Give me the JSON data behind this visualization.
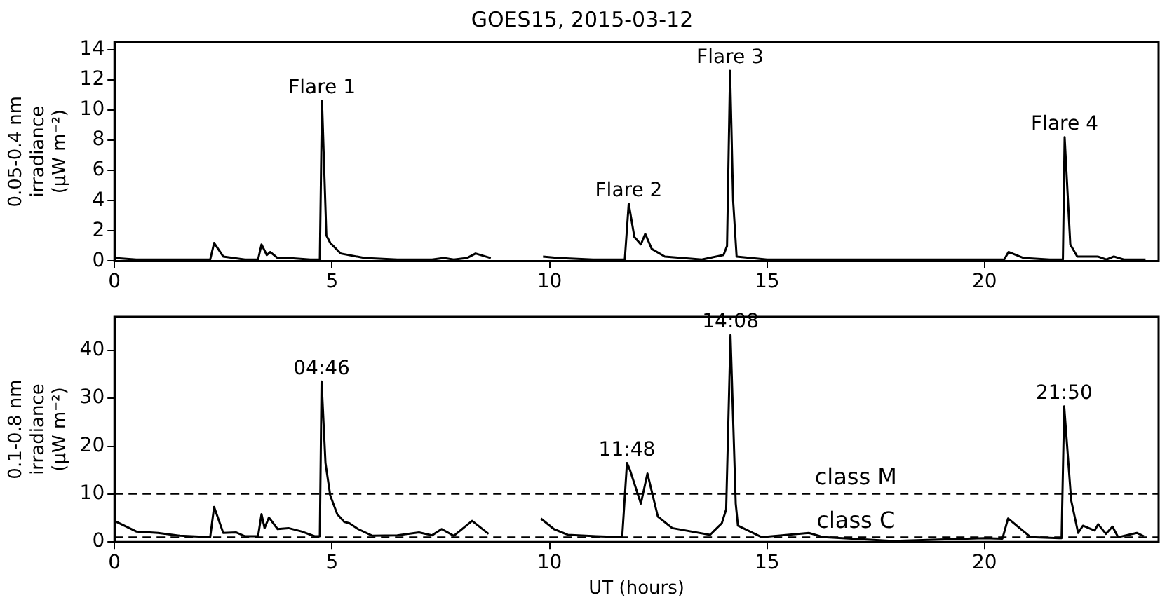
{
  "chart_data": [
    {
      "type": "line",
      "title": "GOES15, 2015-03-12",
      "ylabel": "0.05-0.4 nm\nirradiance\n(μW m⁻²)",
      "x": [
        0,
        0.5,
        1,
        1.5,
        2.0,
        2.2,
        2.29,
        2.5,
        3.0,
        3.3,
        3.38,
        3.5,
        3.58,
        3.75,
        4.0,
        4.5,
        4.72,
        4.77,
        4.87,
        4.96,
        5.2,
        5.75,
        6.5,
        7.3,
        7.57,
        7.8,
        8.1,
        8.3,
        8.65,
        9.2,
        9.85,
        10.2,
        11.0,
        11.73,
        11.82,
        11.95,
        12.1,
        12.2,
        12.35,
        12.65,
        13.5,
        14.0,
        14.08,
        14.15,
        14.22,
        14.3,
        15.0,
        17.0,
        20.0,
        20.45,
        20.55,
        20.9,
        21.5,
        21.8,
        21.84,
        21.97,
        22.13,
        22.6,
        22.8,
        22.97,
        23.2,
        23.7
      ],
      "series": [
        {
          "color": "#000000",
          "values": [
            0.2,
            0.1,
            0.1,
            0.1,
            0.1,
            0.1,
            1.2,
            0.3,
            0.1,
            0.1,
            1.1,
            0.4,
            0.6,
            0.2,
            0.2,
            0.1,
            0.1,
            10.6,
            1.7,
            1.2,
            0.5,
            0.2,
            0.1,
            0.1,
            0.2,
            0.1,
            0.2,
            0.5,
            0.2,
            null,
            0.3,
            0.2,
            0.1,
            0.1,
            3.8,
            1.6,
            1.1,
            1.8,
            0.8,
            0.3,
            0.1,
            0.4,
            1.0,
            12.6,
            4.0,
            0.3,
            0.1,
            0.1,
            0.1,
            0.1,
            0.6,
            0.2,
            0.1,
            0.1,
            8.2,
            1.1,
            0.3,
            0.3,
            0.1,
            0.3,
            0.1,
            0.1
          ]
        }
      ],
      "xlim": [
        0,
        24
      ],
      "xticks": [
        0,
        5,
        10,
        15,
        20
      ],
      "ylim": [
        0,
        14.5
      ],
      "yticks": [
        0,
        2,
        4,
        6,
        8,
        10,
        12,
        14
      ],
      "grid": false,
      "legend": false,
      "marker": "none",
      "line_style": "solid",
      "annotations": [
        {
          "text": "Flare 1",
          "x": 4.77,
          "y": 10.6
        },
        {
          "text": "Flare 2",
          "x": 11.82,
          "y": 3.8
        },
        {
          "text": "Flare 3",
          "x": 14.15,
          "y": 12.6
        },
        {
          "text": "Flare 4",
          "x": 21.84,
          "y": 8.2
        }
      ]
    },
    {
      "type": "line",
      "xlabel": "UT (hours)",
      "ylabel": "0.1-0.8 nm\nirradiance\n(μW m⁻²)",
      "x": [
        0,
        0.5,
        1,
        1.5,
        2.2,
        2.29,
        2.5,
        2.8,
        3.0,
        3.3,
        3.38,
        3.45,
        3.55,
        3.75,
        4.0,
        4.3,
        4.6,
        4.72,
        4.76,
        4.85,
        4.96,
        5.12,
        5.28,
        5.4,
        5.6,
        5.93,
        6.5,
        7.0,
        7.3,
        7.52,
        7.8,
        8.22,
        8.6,
        9.2,
        9.8,
        10.1,
        10.42,
        11.07,
        11.67,
        11.78,
        11.85,
        12.1,
        12.25,
        12.49,
        12.82,
        13.69,
        13.96,
        14.06,
        14.16,
        14.28,
        14.33,
        14.88,
        15.96,
        16.3,
        17.93,
        19.98,
        20.41,
        20.54,
        21.06,
        21.72,
        21.77,
        21.83,
        21.99,
        22.15,
        22.26,
        22.53,
        22.61,
        22.79,
        22.94,
        23.07,
        23.5,
        23.66
      ],
      "series": [
        {
          "color": "#000000",
          "values": [
            4.4,
            2.2,
            1.9,
            1.3,
            1.0,
            7.3,
            1.9,
            2.0,
            1.2,
            1.2,
            5.8,
            2.9,
            5.1,
            2.7,
            2.9,
            2.2,
            1.2,
            1.2,
            33.5,
            16.5,
            9.7,
            5.8,
            4.2,
            3.9,
            2.7,
            1.3,
            1.4,
            2.0,
            1.4,
            2.7,
            1.3,
            4.4,
            1.7,
            null,
            4.9,
            2.7,
            1.5,
            1.2,
            1.0,
            16.5,
            15.0,
            8.0,
            14.3,
            5.3,
            2.9,
            1.5,
            3.9,
            6.8,
            43.2,
            8.0,
            3.4,
            1.0,
            1.9,
            1.0,
            0.2,
            0.8,
            0.7,
            4.9,
            1.0,
            0.8,
            0.8,
            28.3,
            8.7,
            1.9,
            3.4,
            2.4,
            3.7,
            1.7,
            3.2,
            1.0,
            1.9,
            1.2
          ]
        }
      ],
      "xlim": [
        0,
        24
      ],
      "xticks": [
        0,
        5,
        10,
        15,
        20
      ],
      "ylim": [
        0,
        47
      ],
      "yticks": [
        0,
        10,
        20,
        30,
        40
      ],
      "grid": false,
      "legend": false,
      "marker": "none",
      "line_style": "solid",
      "ref_lines": [
        {
          "axis": "y",
          "value": 10,
          "label": "class M",
          "color": "#000000",
          "line_style": "dashed"
        },
        {
          "axis": "y",
          "value": 1,
          "label": "class C",
          "color": "#000000",
          "line_style": "dashed"
        }
      ],
      "annotations": [
        {
          "text": "04:46",
          "x": 4.76,
          "y": 33.5
        },
        {
          "text": "11:48",
          "x": 11.78,
          "y": 16.5
        },
        {
          "text": "14:08",
          "x": 14.16,
          "y": 43.2
        },
        {
          "text": "21:50",
          "x": 21.83,
          "y": 28.3
        }
      ]
    }
  ]
}
